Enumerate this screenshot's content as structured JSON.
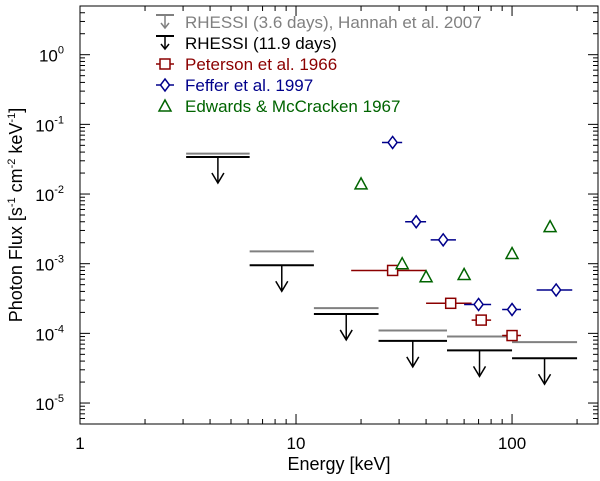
{
  "chart_data": {
    "type": "scatter",
    "xlabel": "Energy [keV]",
    "ylabel_parts": {
      "main": "Photon Flux  [s",
      "e1": "-1",
      "mid1": " cm",
      "e2": "-2",
      "mid2": " keV",
      "e3": "-1",
      "end": "]"
    },
    "x_scale": "log",
    "y_scale": "log",
    "xlim": [
      1,
      250
    ],
    "ylim": [
      5e-06,
      5
    ],
    "x_ticks": [
      {
        "value": 1,
        "label": "1"
      },
      {
        "value": 10,
        "label": "10"
      },
      {
        "value": 100,
        "label": "100"
      }
    ],
    "y_ticks": [
      {
        "value": 1e-05,
        "base": "10",
        "exp": "-5"
      },
      {
        "value": 0.0001,
        "base": "10",
        "exp": "-4"
      },
      {
        "value": 0.001,
        "base": "10",
        "exp": "-3"
      },
      {
        "value": 0.01,
        "base": "10",
        "exp": "-2"
      },
      {
        "value": 0.1,
        "base": "10",
        "exp": "-1"
      },
      {
        "value": 1,
        "base": "10",
        "exp": "0"
      }
    ],
    "legend_position": "top-right",
    "grid": false,
    "series": [
      {
        "name": "RHESSI (3.6 days), Hannah et al. 2007",
        "kind": "upper-limit",
        "color": "#808080",
        "points": [
          {
            "x0": 3.1,
            "x1": 6.1,
            "y": 0.038
          },
          {
            "x0": 6.1,
            "x1": 12.1,
            "y": 0.0015
          },
          {
            "x0": 12.1,
            "x1": 24.1,
            "y": 0.00023
          },
          {
            "x0": 24.1,
            "x1": 50,
            "y": 0.00011
          },
          {
            "x0": 50,
            "x1": 100,
            "y": 9e-05
          },
          {
            "x0": 100,
            "x1": 200,
            "y": 7.5e-05
          }
        ]
      },
      {
        "name": "RHESSI (11.9 days)",
        "kind": "upper-limit",
        "color": "#000000",
        "points": [
          {
            "x0": 3.1,
            "x1": 6.1,
            "y": 0.034
          },
          {
            "x0": 6.1,
            "x1": 12.1,
            "y": 0.00095
          },
          {
            "x0": 12.1,
            "x1": 24.1,
            "y": 0.00019
          },
          {
            "x0": 24.1,
            "x1": 50,
            "y": 7.8e-05
          },
          {
            "x0": 50,
            "x1": 100,
            "y": 5.7e-05
          },
          {
            "x0": 100,
            "x1": 200,
            "y": 4.4e-05
          }
        ]
      },
      {
        "name": "Peterson et al. 1966",
        "kind": "square",
        "color": "#8b0000",
        "points": [
          {
            "x": 28,
            "y": 0.0008,
            "x0": 18,
            "x1": 40
          },
          {
            "x": 52,
            "y": 0.00027,
            "x0": 40,
            "x1": 65
          },
          {
            "x": 72,
            "y": 0.000155,
            "x0": 65,
            "x1": 80
          },
          {
            "x": 100,
            "y": 9.3e-05,
            "x0": 90,
            "x1": 110
          }
        ]
      },
      {
        "name": "Feffer et al. 1997",
        "kind": "diamond",
        "color": "#00008b",
        "points": [
          {
            "x": 28,
            "y": 0.055,
            "x0": 25,
            "x1": 31
          },
          {
            "x": 36,
            "y": 0.004,
            "x0": 32,
            "x1": 40
          },
          {
            "x": 48,
            "y": 0.0022,
            "x0": 42,
            "x1": 55
          },
          {
            "x": 70,
            "y": 0.00026,
            "x0": 60,
            "x1": 80
          },
          {
            "x": 100,
            "y": 0.00022,
            "x0": 90,
            "x1": 110
          },
          {
            "x": 160,
            "y": 0.00042,
            "x0": 130,
            "x1": 190
          }
        ]
      },
      {
        "name": "Edwards & McCracken 1967",
        "kind": "triangle",
        "color": "#006400",
        "points": [
          {
            "x": 20,
            "y": 0.014
          },
          {
            "x": 31,
            "y": 0.001
          },
          {
            "x": 40,
            "y": 0.00065
          },
          {
            "x": 60,
            "y": 0.0007
          },
          {
            "x": 100,
            "y": 0.0014
          },
          {
            "x": 150,
            "y": 0.0034
          }
        ]
      }
    ]
  }
}
